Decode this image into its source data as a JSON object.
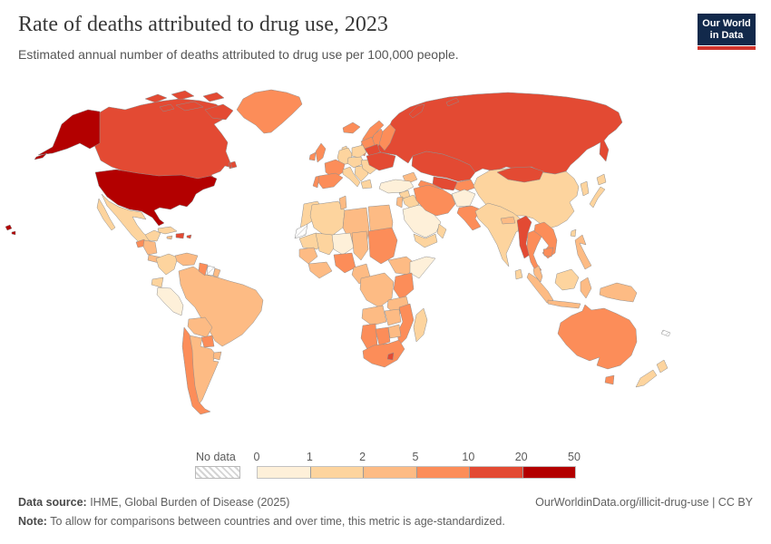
{
  "header": {
    "title": "Rate of deaths attributed to drug use, 2023",
    "subtitle": "Estimated annual number of deaths attributed to drug use per 100,000 people."
  },
  "logo": {
    "line1": "Our World",
    "line2": "in Data",
    "bg_color": "#12294B",
    "bar_color": "#D0342C"
  },
  "legend": {
    "no_data_label": "No data",
    "ticks": [
      "0",
      "1",
      "2",
      "5",
      "10",
      "20",
      "50"
    ],
    "buckets": [
      "0-1",
      "1-2",
      "2-5",
      "5-10",
      "10-20",
      "20-50"
    ],
    "bucket_colors": {
      "no-data": "hatch",
      "0-1": "#FEF0D9",
      "1-2": "#FDD49E",
      "2-5": "#FDBB84",
      "5-10": "#FC8D59",
      "10-20": "#E34A33",
      "20-50": "#B30000"
    }
  },
  "footer": {
    "data_source_label": "Data source:",
    "data_source_text": " IHME, Global Burden of Disease (2025)",
    "link_text": "OurWorldinData.org/illicit-drug-use | CC BY",
    "note_label": "Note:",
    "note_text": " To allow for comparisons between countries and over time, this metric is age-standardized."
  },
  "map": {
    "region_buckets": {
      "alaska": "20-50",
      "hawaii": "20-50",
      "usa": "20-50",
      "canada": "10-20",
      "canada-islands": "10-20",
      "greenland": "5-10",
      "mexico": "1-2",
      "yucatan": "1-2",
      "guatemala": "5-10",
      "honduras-nicaragua": "2-5",
      "costa-rica-panama": "2-5",
      "cuba": "1-2",
      "jamaica": "2-5",
      "hispaniola": "10-20",
      "puerto-rico": "10-20",
      "colombia": "1-2",
      "venezuela": "2-5",
      "guyana": "5-10",
      "suriname": "no-data",
      "french-guiana": "2-5",
      "ecuador": "1-2",
      "peru": "0-1",
      "brazil": "2-5",
      "bolivia": "2-5",
      "paraguay": "5-10",
      "uruguay": "2-5",
      "chile": "5-10",
      "argentina": "2-5",
      "iceland": "5-10",
      "norway": "5-10",
      "sweden": "5-10",
      "finland": "5-10",
      "denmark": "1-2",
      "uk": "5-10",
      "ireland": "5-10",
      "france": "5-10",
      "spain": "5-10",
      "portugal": "5-10",
      "germany": "1-2",
      "poland": "1-2",
      "central-europe": "1-2",
      "italy": "1-2",
      "balkans": "1-2",
      "greece": "1-2",
      "romania-bulgaria": "1-2",
      "baltics": "5-10",
      "belarus": "10-20",
      "ukraine": "10-20",
      "russia": "10-20",
      "novaya-zemlya": "10-20",
      "severnaya-zemlya": "10-20",
      "kazakhstan": "10-20",
      "uzbekistan": "10-20",
      "turkmenistan": "5-10",
      "kyrgyzstan-tajikistan": "5-10",
      "caucasus": "2-5",
      "turkey": "0-1",
      "syria": "1-2",
      "iraq": "1-2",
      "jordan-israel": "2-5",
      "saudi-arabia": "0-1",
      "yemen": "1-2",
      "oman": "1-2",
      "iran": "5-10",
      "afghanistan": "0-1",
      "pakistan": "5-10",
      "india": "1-2",
      "sri-lanka": "1-2",
      "nepal": "2-5",
      "bangladesh": "2-5",
      "china": "1-2",
      "mongolia": "10-20",
      "korea": "1-2",
      "japan": "1-2",
      "taiwan": "1-2",
      "myanmar": "10-20",
      "thailand": "5-10",
      "laos-vietnam": "5-10",
      "cambodia": "5-10",
      "malay-peninsula": "2-5",
      "sumatra": "2-5",
      "borneo": "1-2",
      "java": "2-5",
      "sulawesi": "2-5",
      "philippines": "2-5",
      "new-guinea": "2-5",
      "australia": "5-10",
      "tasmania": "5-10",
      "new-zealand-north": "1-2",
      "new-zealand-south": "1-2",
      "new-caledonia": "no-data",
      "morocco": "1-2",
      "western-sahara": "no-data",
      "algeria": "1-2",
      "tunisia": "2-5",
      "libya": "2-5",
      "egypt": "2-5",
      "mauritania": "1-2",
      "mali": "1-2",
      "niger": "0-1",
      "chad": "2-5",
      "sudan": "5-10",
      "ethiopia": "2-5",
      "somalia": "0-1",
      "senegal-guinea": "2-5",
      "west-africa-coast": "2-5",
      "nigeria": "5-10",
      "cameroon-gabon": "2-5",
      "drc": "2-5",
      "kenya": "5-10",
      "tanzania": "2-5",
      "angola": "2-5",
      "zambia": "2-5",
      "zimbabwe": "2-5",
      "mozambique": "5-10",
      "namibia": "5-10",
      "botswana": "5-10",
      "south-africa": "5-10",
      "lesotho": "10-20",
      "madagascar": "1-2"
    }
  }
}
